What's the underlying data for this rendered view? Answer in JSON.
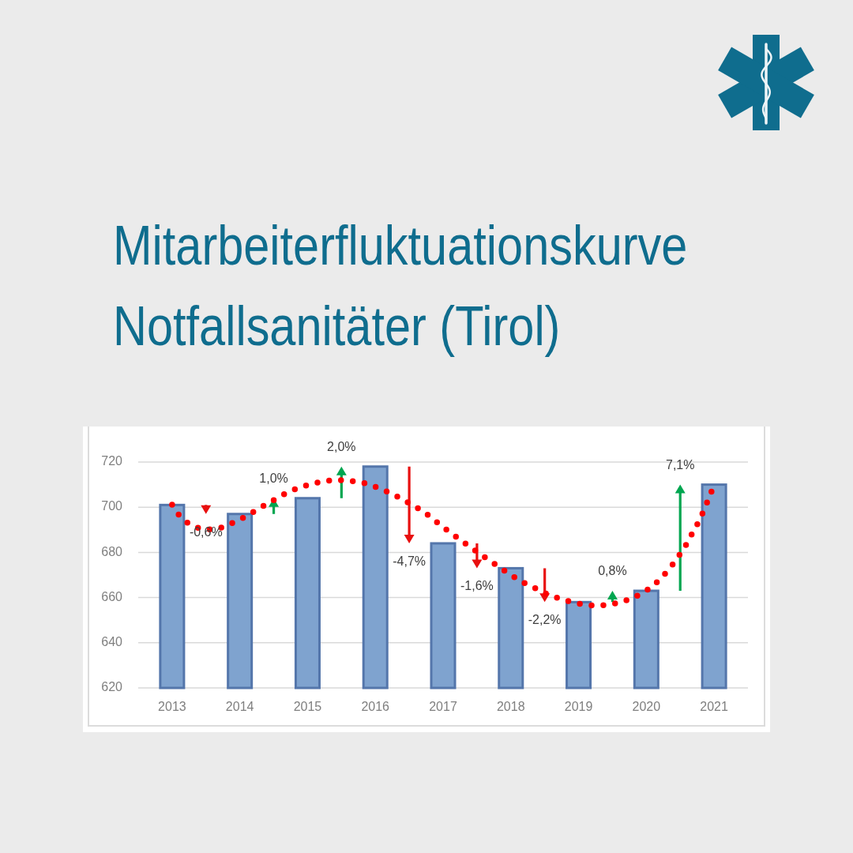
{
  "chart_data": {
    "type": "bar",
    "title": "Mitarbeiterfluktuationskurve Notfallsanitäter (Tirol)",
    "xlim": [
      2012.5,
      2021.5
    ],
    "xticks": [
      2013,
      2014,
      2015,
      2016,
      2017,
      2018,
      2019,
      2020,
      2021
    ],
    "ylim": [
      620,
      720
    ],
    "yticks": [
      620,
      640,
      660,
      680,
      700,
      720
    ],
    "grid": "y",
    "series": [
      {
        "color": "#7fa3cf",
        "x": [
          2013,
          2014,
          2015,
          2016,
          2017,
          2018,
          2019,
          2020,
          2021
        ],
        "values": [
          701,
          697,
          704,
          718,
          684,
          673,
          658,
          663,
          710
        ]
      },
      {
        "type": "line",
        "color": "#ff0000",
        "line_style": "dotted",
        "x": [
          2013.0,
          2013.1,
          2013.24,
          2013.4,
          2013.6,
          2013.78,
          2013.95,
          2014.12,
          2014.27,
          2014.44,
          2014.6,
          2014.77,
          2014.94,
          2015.13,
          2015.31,
          2015.49,
          2015.69,
          2015.87,
          2016.05,
          2016.22,
          2016.38,
          2016.55,
          2016.71,
          2016.85,
          2016.98,
          2017.13,
          2017.28,
          2017.43,
          2017.58,
          2017.74,
          2017.89,
          2018.04,
          2018.2,
          2018.37,
          2018.54,
          2018.72,
          2018.89,
          2019.07,
          2019.26,
          2019.45,
          2019.63,
          2019.8,
          2019.97,
          2020.12,
          2020.25,
          2020.37,
          2020.48,
          2020.58,
          2020.67,
          2020.76,
          2020.84,
          2020.91,
          2020.98
        ],
        "values": [
          701.1,
          696.6,
          692.9,
          690.8,
          690.2,
          691.6,
          693.9,
          696.4,
          699.2,
          702.1,
          704.9,
          707.4,
          709.3,
          710.8,
          711.8,
          712.0,
          711.4,
          710.4,
          708.4,
          706.3,
          703.8,
          700.9,
          698.0,
          694.8,
          691.6,
          688.3,
          685.0,
          681.8,
          678.6,
          675.3,
          672.2,
          669.3,
          666.5,
          664.0,
          661.5,
          659.6,
          658.1,
          657.0,
          656.5,
          656.9,
          658.1,
          659.9,
          662.6,
          665.8,
          669.7,
          673.9,
          678.5,
          683.0,
          688.0,
          692.9,
          698.0,
          703.1,
          708.3
        ]
      }
    ],
    "annotations": [
      "-0,6%",
      "1,0%",
      "2,0%",
      "-4,7%",
      "-1,6%",
      "-2,2%",
      "0,8%",
      "7,1%"
    ]
  }
}
